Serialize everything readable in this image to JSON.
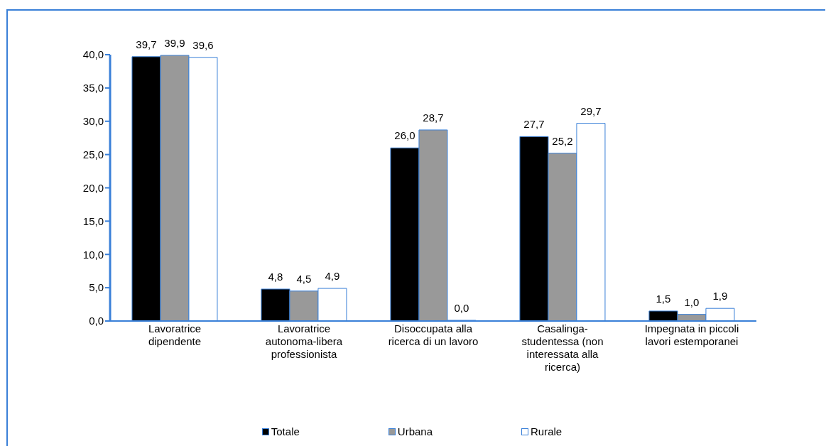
{
  "chart_data": {
    "type": "bar",
    "categories": [
      "Lavoratrice dipendente",
      "Lavoratrice autonoma-libera professionista",
      "Disoccupata alla ricerca di un lavoro",
      "Casalinga-studentessa (non interessata alla ricerca)",
      "Impegnata in piccoli lavori estemporanei"
    ],
    "series": [
      {
        "name": "Totale",
        "color": "#000000",
        "values": [
          39.7,
          4.8,
          26.0,
          27.7,
          1.5
        ],
        "value_labels": [
          "39,7",
          "4,8",
          "26,0",
          "27,7",
          "1,5"
        ]
      },
      {
        "name": "Urbana",
        "color": "#999999",
        "values": [
          39.9,
          4.5,
          28.7,
          25.2,
          1.0
        ],
        "value_labels": [
          "39,9",
          "4,5",
          "28,7",
          "25,2",
          "1,0"
        ]
      },
      {
        "name": "Rurale",
        "color": "#ffffff",
        "values": [
          39.6,
          4.9,
          0.0,
          29.7,
          1.9
        ],
        "value_labels": [
          "39,6",
          "4,9",
          "0,0",
          "29,7",
          "1,9"
        ]
      }
    ],
    "ylim": [
      0,
      40
    ],
    "yticks": [
      {
        "value": 0,
        "label": "0,0"
      },
      {
        "value": 5,
        "label": "5,0"
      },
      {
        "value": 10,
        "label": "10,0"
      },
      {
        "value": 15,
        "label": "15,0"
      },
      {
        "value": 20,
        "label": "20,0"
      },
      {
        "value": 25,
        "label": "25,0"
      },
      {
        "value": 30,
        "label": "30,0"
      },
      {
        "value": 35,
        "label": "35,0"
      },
      {
        "value": 40,
        "label": "40,0"
      }
    ],
    "grid": false,
    "legend": "bottom"
  }
}
